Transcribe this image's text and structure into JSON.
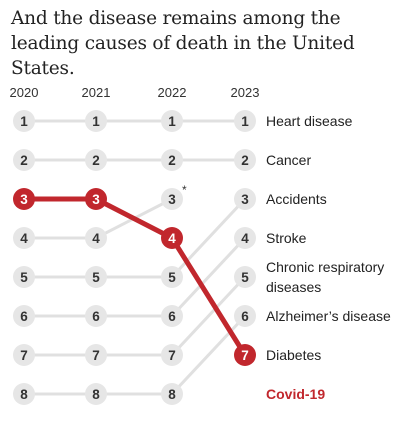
{
  "title": "And the disease remains among the leading causes of death in the United States.",
  "colors": {
    "highlight": "#c1272d",
    "connector": "#e0e0e0",
    "circle": "#e6e6e6",
    "text": "#333333"
  },
  "chart_data": {
    "type": "bump",
    "years": [
      "2020",
      "2021",
      "2022",
      "2023"
    ],
    "labels": [
      {
        "rank": 1,
        "text": [
          "Heart disease"
        ]
      },
      {
        "rank": 2,
        "text": [
          "Cancer"
        ]
      },
      {
        "rank": 3,
        "text": [
          "Accidents"
        ]
      },
      {
        "rank": 4,
        "text": [
          "Stroke"
        ]
      },
      {
        "rank": 5,
        "text": [
          "Chronic respiratory",
          "diseases"
        ]
      },
      {
        "rank": 6,
        "text": [
          "Alzheimer’s disease"
        ]
      },
      {
        "rank": 7,
        "text": [
          "Diabetes"
        ]
      },
      {
        "rank": 8,
        "text": [
          "Covid-19"
        ]
      }
    ],
    "series": [
      {
        "name": "Heart disease",
        "ranks": [
          1,
          1,
          1,
          1
        ]
      },
      {
        "name": "Cancer",
        "ranks": [
          2,
          2,
          2,
          2
        ]
      },
      {
        "name": "Accidents",
        "ranks": [
          4,
          4,
          3,
          null
        ],
        "annotation": "*"
      },
      {
        "name": "Stroke",
        "ranks": [
          5,
          5,
          5,
          3
        ]
      },
      {
        "name": "Chronic respiratory diseases",
        "ranks": [
          6,
          6,
          6,
          4
        ]
      },
      {
        "name": "Alzheimer’s disease",
        "ranks": [
          7,
          7,
          7,
          5
        ]
      },
      {
        "name": "Diabetes",
        "ranks": [
          8,
          8,
          8,
          6
        ]
      },
      {
        "name": "Covid-19",
        "ranks": [
          3,
          3,
          4,
          7
        ],
        "highlight": true
      }
    ]
  }
}
